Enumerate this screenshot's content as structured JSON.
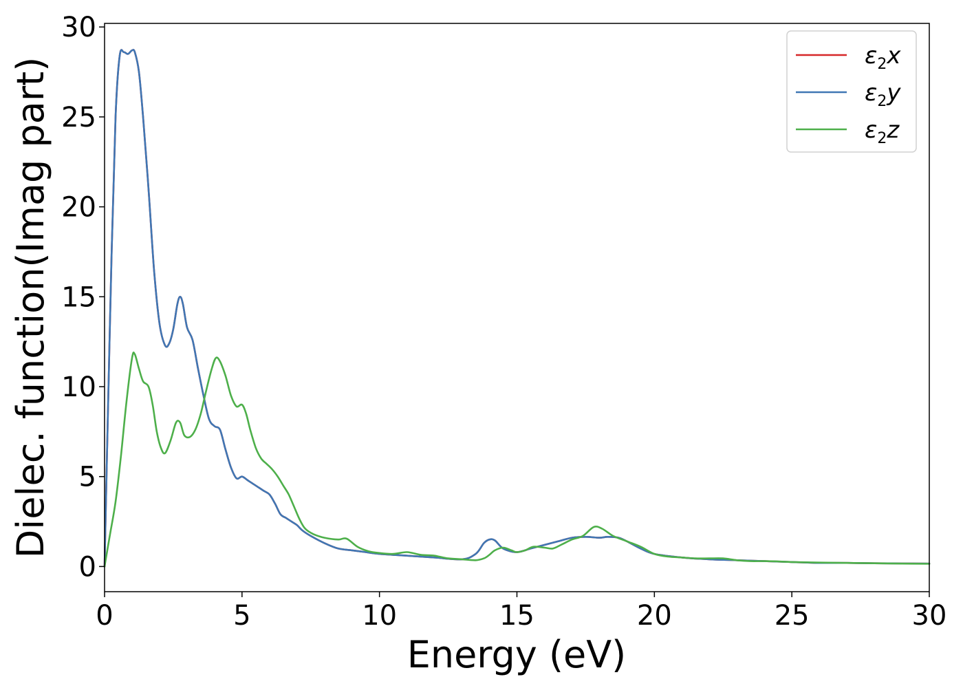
{
  "chart_data": {
    "type": "line",
    "xlabel": "Energy (eV)",
    "ylabel": "Dielec. function(Imag part)",
    "xlim": [
      0,
      30
    ],
    "ylim": [
      -1.4,
      30.2
    ],
    "xticks": [
      0,
      5,
      10,
      15,
      20,
      25,
      30
    ],
    "yticks": [
      0,
      5,
      10,
      15,
      20,
      25,
      30
    ],
    "grid": false,
    "legend_position": "top-right",
    "series": [
      {
        "name": "ε2x",
        "legend": {
          "symbol": "ε",
          "sub": "2",
          "suffix": "x"
        },
        "color": "#d62728",
        "x": [
          0,
          0.1,
          0.25,
          0.4,
          0.55,
          0.7,
          0.85,
          1.0,
          1.1,
          1.25,
          1.4,
          1.6,
          1.8,
          2.0,
          2.2,
          2.35,
          2.5,
          2.65,
          2.75,
          2.85,
          3.0,
          3.2,
          3.4,
          3.6,
          3.8,
          4.0,
          4.2,
          4.4,
          4.6,
          4.8,
          5.0,
          5.2,
          5.4,
          5.6,
          5.8,
          6.0,
          6.2,
          6.4,
          6.6,
          6.8,
          7.0,
          7.2,
          7.5,
          8.0,
          8.5,
          9.0,
          9.5,
          10.0,
          11.0,
          12.0,
          13.0,
          13.5,
          13.8,
          14.0,
          14.2,
          14.5,
          15.0,
          15.5,
          16.0,
          16.5,
          17.0,
          17.5,
          18.0,
          18.3,
          18.7,
          19.0,
          19.5,
          20.0,
          21.0,
          22.0,
          23.0,
          24.0,
          25.0,
          26.0,
          27.0,
          28.0,
          29.0,
          30.0
        ],
        "values": [
          0,
          7.0,
          17.0,
          25.0,
          28.4,
          28.6,
          28.5,
          28.7,
          28.6,
          27.5,
          25.0,
          21.0,
          16.5,
          13.5,
          12.3,
          12.4,
          13.2,
          14.6,
          15.0,
          14.6,
          13.3,
          12.6,
          11.0,
          9.5,
          8.2,
          7.8,
          7.6,
          6.5,
          5.5,
          4.9,
          5.0,
          4.8,
          4.6,
          4.4,
          4.2,
          4.0,
          3.5,
          2.9,
          2.7,
          2.5,
          2.3,
          2.0,
          1.7,
          1.3,
          1.0,
          0.9,
          0.8,
          0.7,
          0.6,
          0.5,
          0.4,
          0.7,
          1.3,
          1.5,
          1.45,
          1.0,
          0.8,
          1.0,
          1.2,
          1.4,
          1.6,
          1.65,
          1.6,
          1.65,
          1.6,
          1.4,
          1.0,
          0.7,
          0.5,
          0.4,
          0.35,
          0.3,
          0.25,
          0.2,
          0.2,
          0.18,
          0.17,
          0.16
        ]
      },
      {
        "name": "ε2y",
        "legend": {
          "symbol": "ε",
          "sub": "2",
          "suffix": "y"
        },
        "color": "#3f77b4",
        "x": [
          0,
          0.1,
          0.25,
          0.4,
          0.55,
          0.7,
          0.85,
          1.0,
          1.1,
          1.25,
          1.4,
          1.6,
          1.8,
          2.0,
          2.2,
          2.35,
          2.5,
          2.65,
          2.75,
          2.85,
          3.0,
          3.2,
          3.4,
          3.6,
          3.8,
          4.0,
          4.2,
          4.4,
          4.6,
          4.8,
          5.0,
          5.2,
          5.4,
          5.6,
          5.8,
          6.0,
          6.2,
          6.4,
          6.6,
          6.8,
          7.0,
          7.2,
          7.5,
          8.0,
          8.5,
          9.0,
          9.5,
          10.0,
          11.0,
          12.0,
          13.0,
          13.5,
          13.8,
          14.0,
          14.2,
          14.5,
          15.0,
          15.5,
          16.0,
          16.5,
          17.0,
          17.5,
          18.0,
          18.3,
          18.7,
          19.0,
          19.5,
          20.0,
          21.0,
          22.0,
          23.0,
          24.0,
          25.0,
          26.0,
          27.0,
          28.0,
          29.0,
          30.0
        ],
        "values": [
          0,
          7.0,
          17.0,
          25.0,
          28.4,
          28.6,
          28.5,
          28.7,
          28.6,
          27.5,
          25.0,
          21.0,
          16.5,
          13.5,
          12.3,
          12.4,
          13.2,
          14.6,
          15.0,
          14.6,
          13.3,
          12.6,
          11.0,
          9.5,
          8.2,
          7.8,
          7.6,
          6.5,
          5.5,
          4.9,
          5.0,
          4.8,
          4.6,
          4.4,
          4.2,
          4.0,
          3.5,
          2.9,
          2.7,
          2.5,
          2.3,
          2.0,
          1.7,
          1.3,
          1.0,
          0.9,
          0.8,
          0.7,
          0.6,
          0.5,
          0.4,
          0.7,
          1.3,
          1.5,
          1.45,
          1.0,
          0.8,
          1.0,
          1.2,
          1.4,
          1.6,
          1.65,
          1.6,
          1.65,
          1.6,
          1.4,
          1.0,
          0.7,
          0.5,
          0.4,
          0.35,
          0.3,
          0.25,
          0.2,
          0.2,
          0.18,
          0.17,
          0.16
        ]
      },
      {
        "name": "ε2z",
        "legend": {
          "symbol": "ε",
          "sub": "2",
          "suffix": "z"
        },
        "color": "#4daf4a",
        "x": [
          0,
          0.2,
          0.4,
          0.6,
          0.8,
          1.0,
          1.1,
          1.25,
          1.4,
          1.6,
          1.75,
          1.9,
          2.05,
          2.2,
          2.4,
          2.6,
          2.75,
          2.9,
          3.1,
          3.3,
          3.5,
          3.7,
          3.9,
          4.05,
          4.2,
          4.4,
          4.6,
          4.8,
          5.0,
          5.15,
          5.3,
          5.5,
          5.7,
          5.9,
          6.1,
          6.3,
          6.5,
          6.7,
          6.9,
          7.1,
          7.3,
          7.6,
          8.0,
          8.5,
          8.8,
          9.2,
          9.6,
          10.0,
          10.5,
          11.0,
          11.5,
          12.0,
          12.5,
          13.0,
          13.5,
          13.8,
          14.0,
          14.2,
          14.5,
          14.8,
          15.0,
          15.3,
          15.6,
          16.0,
          16.3,
          16.6,
          17.0,
          17.4,
          17.8,
          18.1,
          18.5,
          19.0,
          19.5,
          20.0,
          20.5,
          21.0,
          21.5,
          22.0,
          22.5,
          23.0,
          23.5,
          24.0,
          24.5,
          25.0,
          26.0,
          27.0,
          28.0,
          29.0,
          30.0
        ],
        "values": [
          0,
          1.8,
          3.6,
          6.2,
          9.2,
          11.6,
          11.8,
          11.0,
          10.3,
          10.0,
          9.0,
          7.5,
          6.6,
          6.3,
          7.0,
          8.0,
          8.0,
          7.3,
          7.2,
          7.6,
          8.5,
          9.8,
          11.0,
          11.6,
          11.4,
          10.6,
          9.5,
          8.9,
          9.0,
          8.5,
          7.6,
          6.6,
          6.0,
          5.7,
          5.4,
          5.0,
          4.5,
          4.0,
          3.3,
          2.6,
          2.1,
          1.8,
          1.6,
          1.5,
          1.55,
          1.1,
          0.85,
          0.75,
          0.7,
          0.8,
          0.65,
          0.6,
          0.45,
          0.4,
          0.35,
          0.45,
          0.65,
          0.9,
          1.05,
          0.9,
          0.8,
          0.9,
          1.1,
          1.05,
          1.0,
          1.2,
          1.5,
          1.7,
          2.2,
          2.1,
          1.7,
          1.4,
          1.1,
          0.7,
          0.55,
          0.5,
          0.45,
          0.45,
          0.45,
          0.35,
          0.3,
          0.3,
          0.28,
          0.25,
          0.22,
          0.2,
          0.18,
          0.16,
          0.15
        ]
      }
    ]
  }
}
